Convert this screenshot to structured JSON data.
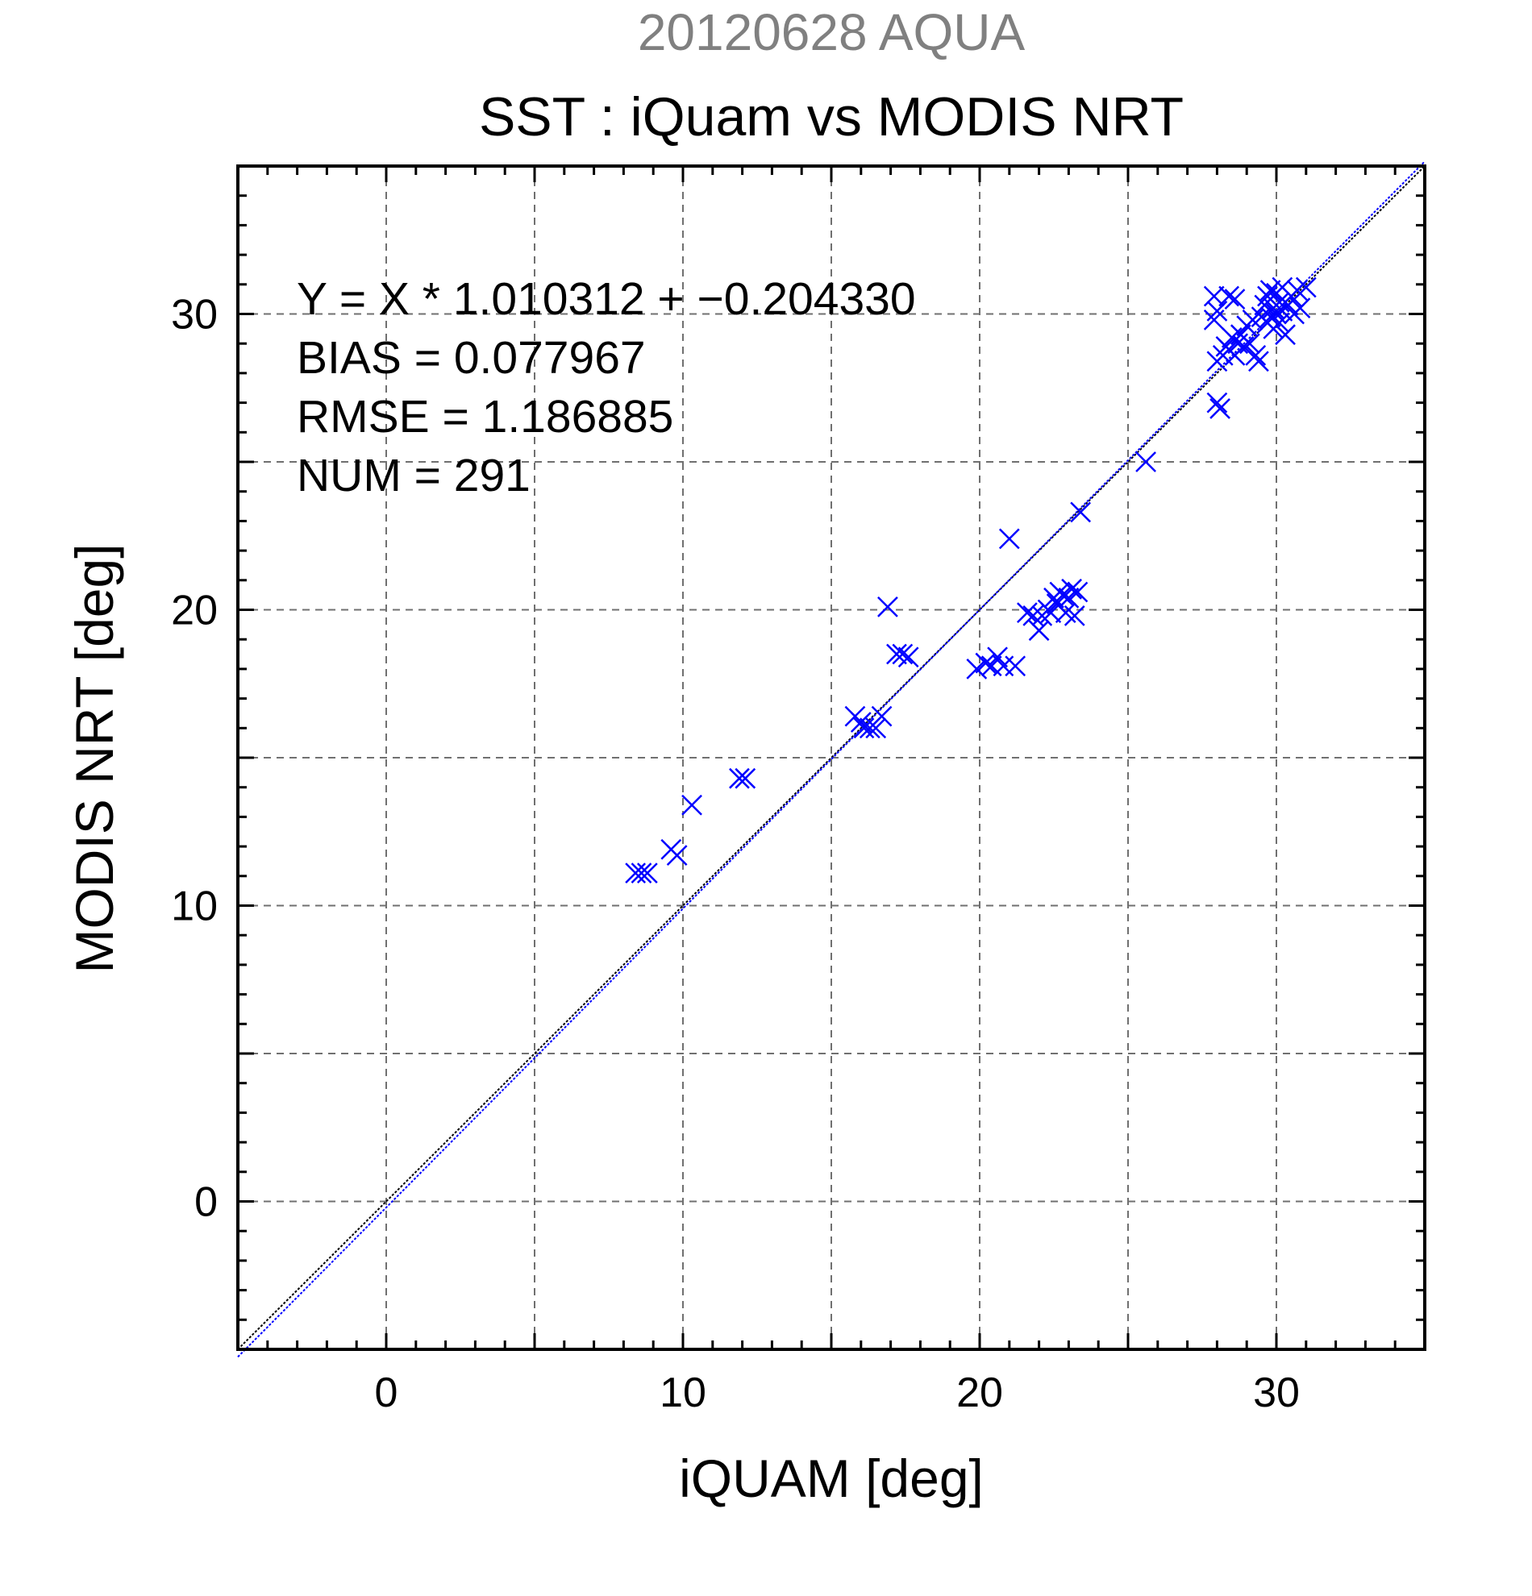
{
  "chart_data": {
    "type": "scatter",
    "title": "20120628 AQUA",
    "subtitle": "SST : iQuam vs MODIS NRT",
    "xlabel": "iQUAM [deg]",
    "ylabel": "MODIS NRT [deg]",
    "xlim": [
      -5,
      35
    ],
    "ylim": [
      -5,
      35
    ],
    "xticks": [
      0,
      10,
      20,
      30
    ],
    "yticks": [
      0,
      10,
      20,
      30
    ],
    "grid": true,
    "annotations": [
      "Y = X * 1.010312 + −0.204330",
      "BIAS = 0.077967",
      "RMSE = 1.186885",
      "NUM = 291"
    ],
    "regression": {
      "slope": 1.010312,
      "intercept": -0.20433
    },
    "colors": {
      "points": "#0000ff",
      "identity_line": "#000000",
      "fit_line": "#0000ff",
      "title_date": "#808080"
    },
    "marker": "x",
    "points": [
      [
        8.4,
        11.1
      ],
      [
        8.6,
        11.1
      ],
      [
        8.8,
        11.1
      ],
      [
        9.6,
        11.9
      ],
      [
        9.8,
        11.7
      ],
      [
        10.3,
        13.4
      ],
      [
        11.9,
        14.3
      ],
      [
        12.1,
        14.3
      ],
      [
        15.8,
        16.4
      ],
      [
        16.0,
        16.2
      ],
      [
        16.1,
        16.0
      ],
      [
        16.3,
        16.0
      ],
      [
        16.5,
        16.0
      ],
      [
        16.7,
        16.4
      ],
      [
        16.9,
        20.1
      ],
      [
        17.2,
        18.5
      ],
      [
        17.4,
        18.5
      ],
      [
        17.6,
        18.4
      ],
      [
        19.9,
        18.0
      ],
      [
        20.2,
        18.2
      ],
      [
        20.4,
        18.1
      ],
      [
        20.6,
        18.4
      ],
      [
        20.8,
        18.1
      ],
      [
        21.2,
        18.1
      ],
      [
        21.0,
        22.4
      ],
      [
        21.6,
        19.9
      ],
      [
        21.8,
        19.8
      ],
      [
        22.0,
        19.3
      ],
      [
        22.1,
        19.8
      ],
      [
        22.3,
        20.0
      ],
      [
        22.4,
        19.9
      ],
      [
        22.5,
        20.4
      ],
      [
        22.6,
        20.2
      ],
      [
        22.7,
        20.6
      ],
      [
        22.8,
        20.5
      ],
      [
        22.9,
        19.9
      ],
      [
        23.0,
        20.4
      ],
      [
        23.1,
        20.7
      ],
      [
        23.2,
        19.8
      ],
      [
        23.3,
        20.6
      ],
      [
        23.4,
        23.3
      ],
      [
        25.6,
        25.0
      ],
      [
        27.9,
        30.6
      ],
      [
        27.9,
        29.8
      ],
      [
        28.0,
        30.1
      ],
      [
        28.0,
        28.4
      ],
      [
        28.0,
        27.0
      ],
      [
        28.1,
        26.8
      ],
      [
        28.2,
        28.6
      ],
      [
        28.3,
        28.9
      ],
      [
        28.4,
        30.6
      ],
      [
        28.4,
        28.8
      ],
      [
        28.5,
        29.2
      ],
      [
        28.6,
        30.5
      ],
      [
        28.6,
        28.6
      ],
      [
        28.7,
        29.0
      ],
      [
        28.8,
        29.3
      ],
      [
        28.9,
        28.9
      ],
      [
        29.0,
        29.6
      ],
      [
        29.1,
        29.0
      ],
      [
        29.2,
        29.8
      ],
      [
        29.3,
        28.6
      ],
      [
        29.4,
        28.4
      ],
      [
        29.5,
        29.9
      ],
      [
        29.6,
        30.3
      ],
      [
        29.7,
        29.7
      ],
      [
        29.7,
        30.6
      ],
      [
        29.8,
        29.9
      ],
      [
        29.8,
        30.8
      ],
      [
        29.9,
        30.2
      ],
      [
        29.9,
        29.5
      ],
      [
        30.0,
        30.0
      ],
      [
        30.0,
        30.7
      ],
      [
        30.1,
        30.4
      ],
      [
        30.1,
        29.7
      ],
      [
        30.2,
        30.1
      ],
      [
        30.2,
        30.9
      ],
      [
        30.3,
        29.3
      ],
      [
        30.4,
        30.3
      ],
      [
        30.5,
        30.6
      ],
      [
        30.6,
        30.0
      ],
      [
        30.7,
        30.8
      ],
      [
        30.8,
        30.2
      ],
      [
        31.0,
        30.9
      ]
    ]
  }
}
